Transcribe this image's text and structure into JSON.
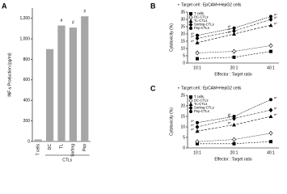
{
  "chart_data": [
    {
      "type": "bar",
      "panel": "A",
      "ylabel": "INF-γ Production (pg/ml)",
      "xlabel": "CTLs",
      "categories": [
        "T cells",
        "DC",
        "TL",
        "Sorting",
        "Pep"
      ],
      "values": [
        20,
        900,
        1130,
        1110,
        1220
      ],
      "annotations": [
        null,
        null,
        "#",
        "#",
        "#"
      ],
      "color": "#a6a6a6",
      "ylim": [
        0,
        1300
      ],
      "yticks": [
        0,
        200,
        400,
        600,
        800,
        {
          "value": 1000,
          "label": "1,000"
        },
        {
          "value": 1200,
          "label": "1,200"
        }
      ]
    },
    {
      "type": "line",
      "panel": "B",
      "title": "Target cell : EpCAM+HepG2 cells",
      "xlabel": "Effector : Target ratio",
      "ylabel": "Cytotoxicity (%)",
      "categories": [
        "10:1",
        "20:1",
        "40:1"
      ],
      "ylim": [
        0,
        35
      ],
      "yticks": [
        0,
        5,
        10,
        15,
        20,
        25,
        30,
        35
      ],
      "series": [
        {
          "name": "T cells",
          "color": "#000000",
          "marker": "square",
          "values": [
            3,
            4,
            8
          ]
        },
        {
          "name": "DC-CTLs",
          "color": "#000000",
          "marker": "diamond-open",
          "values": [
            7,
            8,
            12
          ]
        },
        {
          "name": "TL-CTLs",
          "color": "#000000",
          "marker": "triangle",
          "values": [
            14,
            20,
            26
          ],
          "annotations": [
            "#*",
            "#*",
            "#*"
          ]
        },
        {
          "name": "Sorting-CTLs",
          "color": "#000000",
          "marker": "diamond",
          "values": [
            17,
            22,
            30
          ],
          "annotations": [
            "#*",
            "#*",
            "#*"
          ]
        },
        {
          "name": "Pep-CTLs",
          "color": "#000000",
          "marker": "circle",
          "values": [
            19,
            24,
            32
          ],
          "annotations": [
            "#*",
            "#*",
            "#*"
          ]
        }
      ]
    },
    {
      "type": "line",
      "panel": "C",
      "title": "Target cell : EpCAM+HepG2 cells",
      "xlabel": "Effector : Target ratio",
      "ylabel": "Cytotoxicity (%)",
      "categories": [
        "10:1",
        "20:1",
        "40:1"
      ],
      "ylim": [
        0,
        25
      ],
      "yticks": [
        0,
        5,
        10,
        15,
        20,
        25
      ],
      "series": [
        {
          "name": "T cells",
          "color": "#000000",
          "marker": "square",
          "values": [
            2,
            2,
            3
          ]
        },
        {
          "name": "DC-CTLs",
          "color": "#000000",
          "marker": "diamond-open",
          "values": [
            3,
            4,
            7
          ]
        },
        {
          "name": "TL-CTLs",
          "color": "#000000",
          "marker": "triangle",
          "values": [
            8,
            11,
            15
          ],
          "annotations": [
            "#*",
            "#*",
            "#*"
          ]
        },
        {
          "name": "Sorting-CTLs",
          "color": "#000000",
          "marker": "diamond",
          "values": [
            10,
            14,
            18
          ],
          "annotations": [
            "#*",
            "#*",
            "#*"
          ]
        },
        {
          "name": "Pep-CTLs",
          "color": "#000000",
          "marker": "circle",
          "values": [
            12,
            15,
            23
          ],
          "annotations": [
            "#*",
            "#*",
            "#*"
          ]
        }
      ]
    }
  ]
}
